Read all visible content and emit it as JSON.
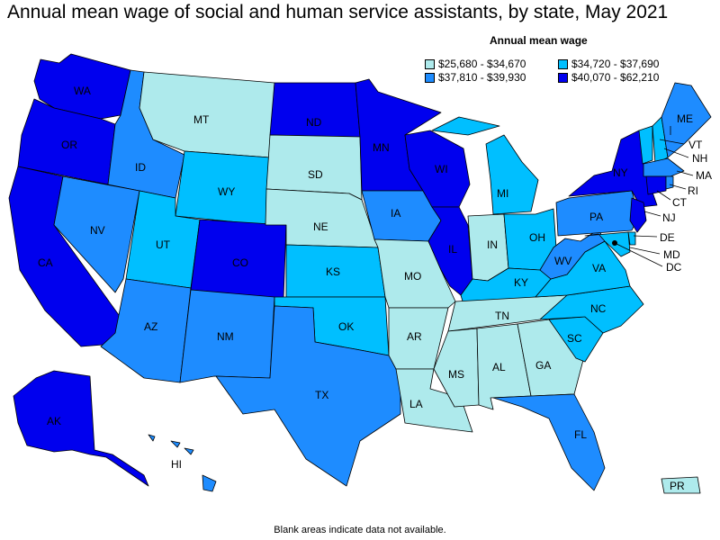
{
  "title": "Annual mean wage of social and human service assistants, by state, May 2021",
  "legend": {
    "title": "Annual mean wage",
    "items": [
      {
        "label": "$25,680 - $34,670",
        "color": "#aeeaec"
      },
      {
        "label": "$34,720 - $37,690",
        "color": "#00bfff"
      },
      {
        "label": "$37,810 - $39,930",
        "color": "#1e8cff"
      },
      {
        "label": "$40,070 - $62,210",
        "color": "#0000ee"
      }
    ]
  },
  "footnote": "Blank areas indicate data not available.",
  "states": {
    "WA": "WA",
    "OR": "OR",
    "CA": "CA",
    "ID": "ID",
    "NV": "NV",
    "MT": "MT",
    "WY": "WY",
    "UT": "UT",
    "AZ": "AZ",
    "CO": "CO",
    "NM": "NM",
    "ND": "ND",
    "SD": "SD",
    "NE": "NE",
    "KS": "KS",
    "OK": "OK",
    "TX": "TX",
    "MN": "MN",
    "IA": "IA",
    "MO": "MO",
    "AR": "AR",
    "LA": "LA",
    "WI": "WI",
    "IL": "IL",
    "MI": "MI",
    "IN": "IN",
    "OH": "OH",
    "KY": "KY",
    "TN": "TN",
    "MS": "MS",
    "AL": "AL",
    "GA": "GA",
    "FL": "FL",
    "SC": "SC",
    "NC": "NC",
    "VA": "VA",
    "WV": "WV",
    "PA": "PA",
    "NY": "NY",
    "ME": "ME",
    "VT": "VT",
    "NH": "NH",
    "MA": "MA",
    "RI": "RI",
    "CT": "CT",
    "NJ": "NJ",
    "DE": "DE",
    "MD": "MD",
    "DC": "DC",
    "AK": "AK",
    "HI": "HI",
    "PR": "PR"
  }
}
